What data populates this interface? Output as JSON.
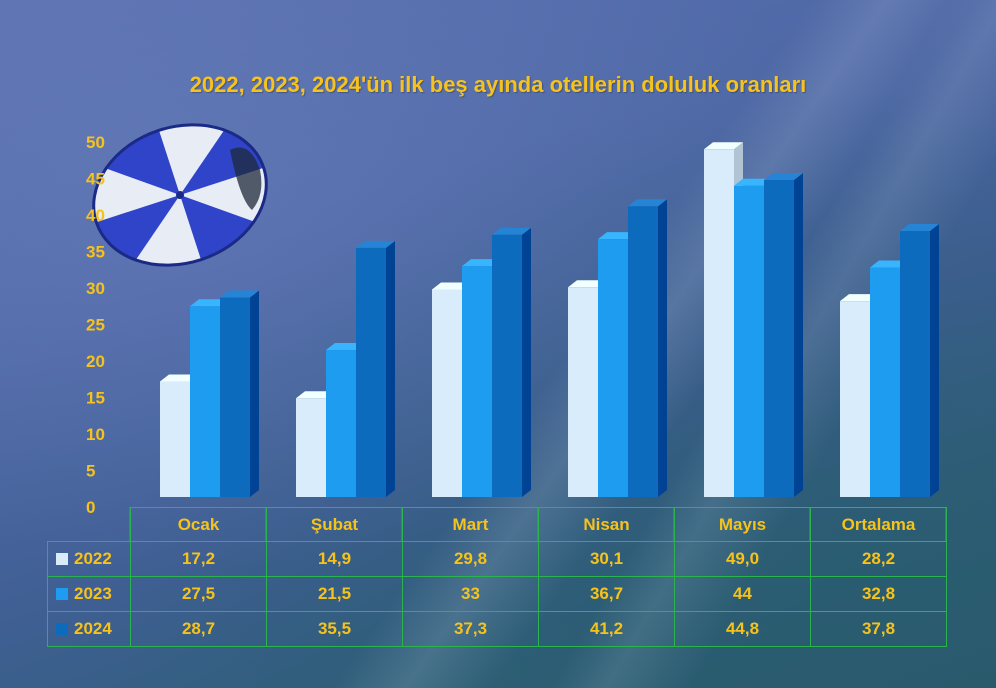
{
  "chart_data": {
    "type": "bar",
    "title": "2022, 2023, 2024'ün ilk beş ayında otellerin doluluk oranları",
    "categories": [
      "Ocak",
      "Şubat",
      "Mart",
      "Nisan",
      "Mayıs",
      "Ortalama"
    ],
    "series": [
      {
        "name": "2022",
        "color": "#d8ecfb",
        "values": [
          17.2,
          14.9,
          29.8,
          30.1,
          49.0,
          28.2
        ]
      },
      {
        "name": "2023",
        "color": "#1e9cf0",
        "values": [
          27.5,
          21.5,
          33,
          36.7,
          44,
          32.8
        ]
      },
      {
        "name": "2024",
        "color": "#0d6bbd",
        "values": [
          28.7,
          35.5,
          37.3,
          41.2,
          44.8,
          37.8
        ]
      }
    ],
    "table_values": [
      [
        "17,2",
        "14,9",
        "29,8",
        "30,1",
        "49,0",
        "28,2"
      ],
      [
        "27,5",
        "21,5",
        "33",
        "36,7",
        "44",
        "32,8"
      ],
      [
        "28,7",
        "35,5",
        "37,3",
        "41,2",
        "44,8",
        "37,8"
      ]
    ],
    "yticks": [
      "0",
      "5",
      "10",
      "15",
      "20",
      "25",
      "30",
      "35",
      "40",
      "45",
      "50"
    ],
    "ylim": [
      0,
      50
    ],
    "xlabel": "",
    "ylabel": "",
    "grid": false,
    "legend": "data-table-rows"
  }
}
